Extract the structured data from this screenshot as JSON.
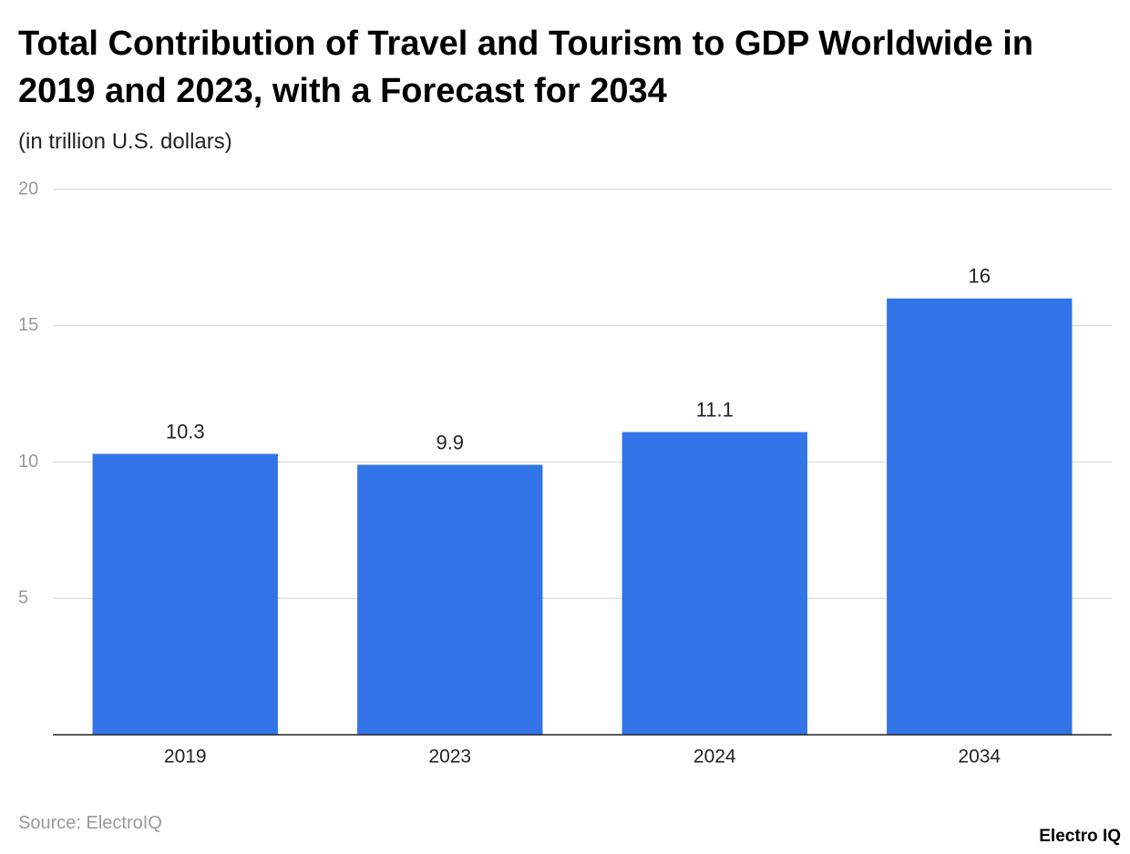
{
  "chart_data": {
    "type": "bar",
    "title": "Total Contribution of Travel and Tourism to GDP Worldwide in 2019 and 2023, with a Forecast for 2034",
    "subtitle": "(in trillion U.S. dollars)",
    "categories": [
      "2019",
      "2023",
      "2024",
      "2034"
    ],
    "values": [
      10.3,
      9.9,
      11.1,
      16
    ],
    "color": "#3375e8",
    "ylim": [
      0,
      20
    ],
    "yticks": [
      5,
      10,
      15,
      20
    ],
    "grid": true,
    "source": "Source: ElectroIQ",
    "logo": "Electro IQ"
  }
}
